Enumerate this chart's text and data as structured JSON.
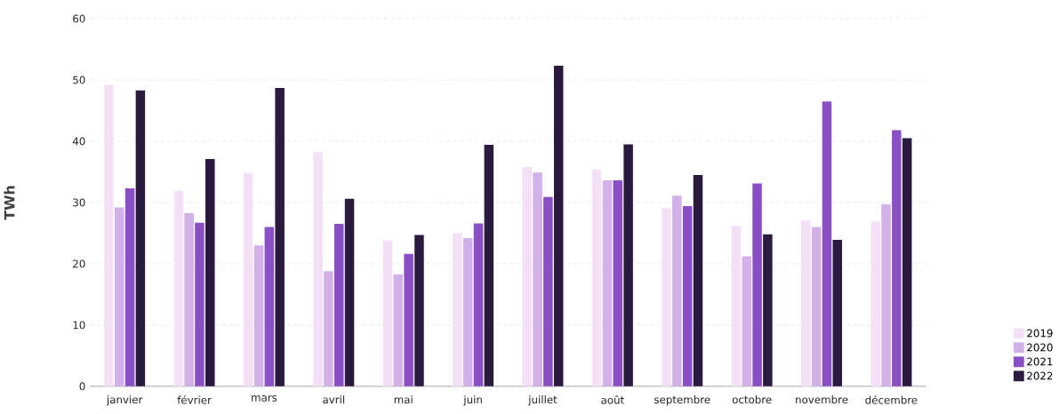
{
  "chart_data": {
    "type": "bar",
    "ylabel": "TWh",
    "categories": [
      "janvier",
      "février",
      "mars",
      "avril",
      "mai",
      "juin",
      "juillet",
      "août",
      "septembre",
      "octobre",
      "novembre",
      "décembre"
    ],
    "series": [
      {
        "name": "2019",
        "color": "#f3e0f7",
        "values": [
          49.2,
          31.9,
          34.8,
          38.3,
          23.8,
          25.0,
          35.8,
          35.4,
          29.1,
          26.2,
          27.1,
          26.9
        ]
      },
      {
        "name": "2020",
        "color": "#d2b0e8",
        "values": [
          29.2,
          28.3,
          23.0,
          18.8,
          18.3,
          24.2,
          34.9,
          33.6,
          31.1,
          21.2,
          26.0,
          29.7
        ]
      },
      {
        "name": "2021",
        "color": "#8a4fc4",
        "values": [
          32.3,
          26.7,
          26.0,
          26.5,
          21.6,
          26.6,
          30.9,
          33.6,
          29.4,
          33.1,
          46.5,
          41.8
        ]
      },
      {
        "name": "2022",
        "color": "#2a1a40",
        "values": [
          48.3,
          37.1,
          48.7,
          30.6,
          24.7,
          39.4,
          52.3,
          39.5,
          34.5,
          24.8,
          23.9,
          40.5
        ]
      }
    ],
    "ylim": [
      0,
      60
    ],
    "yticks": [
      0,
      10,
      20,
      30,
      40,
      50,
      60
    ],
    "grid": "y",
    "legend": "bottom right"
  }
}
